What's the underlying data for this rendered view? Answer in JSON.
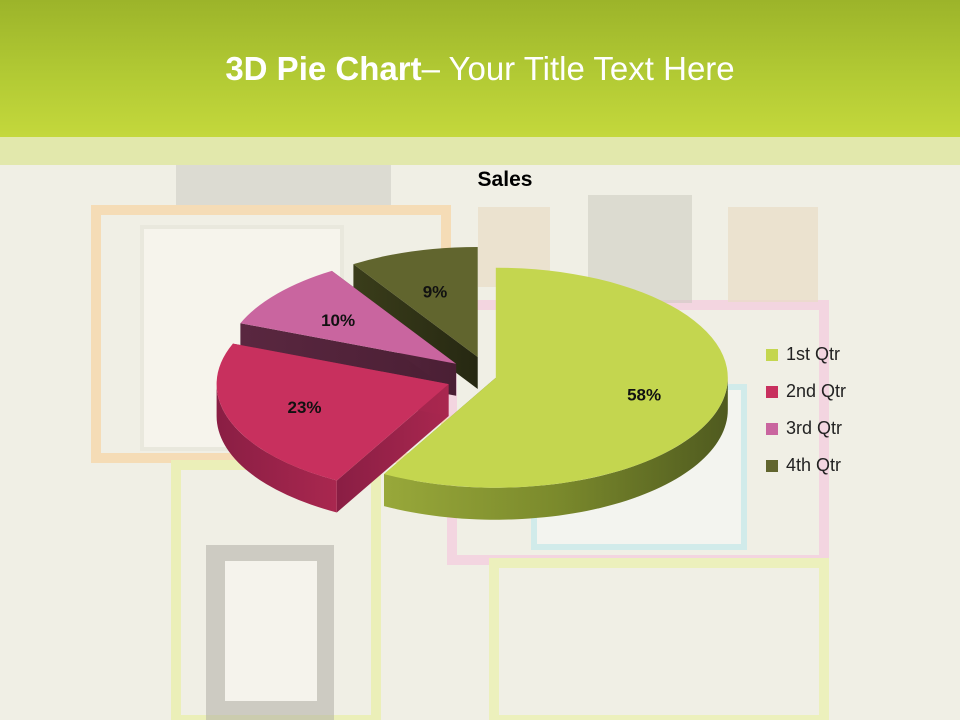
{
  "slide": {
    "title_bold": "3D Pie Chart",
    "title_rest": "– Your Title Text Here"
  },
  "chart_data": {
    "type": "pie",
    "title": "Sales",
    "categories": [
      "1st Qtr",
      "2nd Qtr",
      "3rd Qtr",
      "4th Qtr"
    ],
    "values": [
      58,
      23,
      10,
      9
    ],
    "data_labels": [
      "58%",
      "23%",
      "10%",
      "9%"
    ],
    "colors": [
      "#c4d64f",
      "#c8305e",
      "#c9659f",
      "#61652e"
    ],
    "legend_position": "right",
    "three_d": true,
    "exploded": true
  }
}
